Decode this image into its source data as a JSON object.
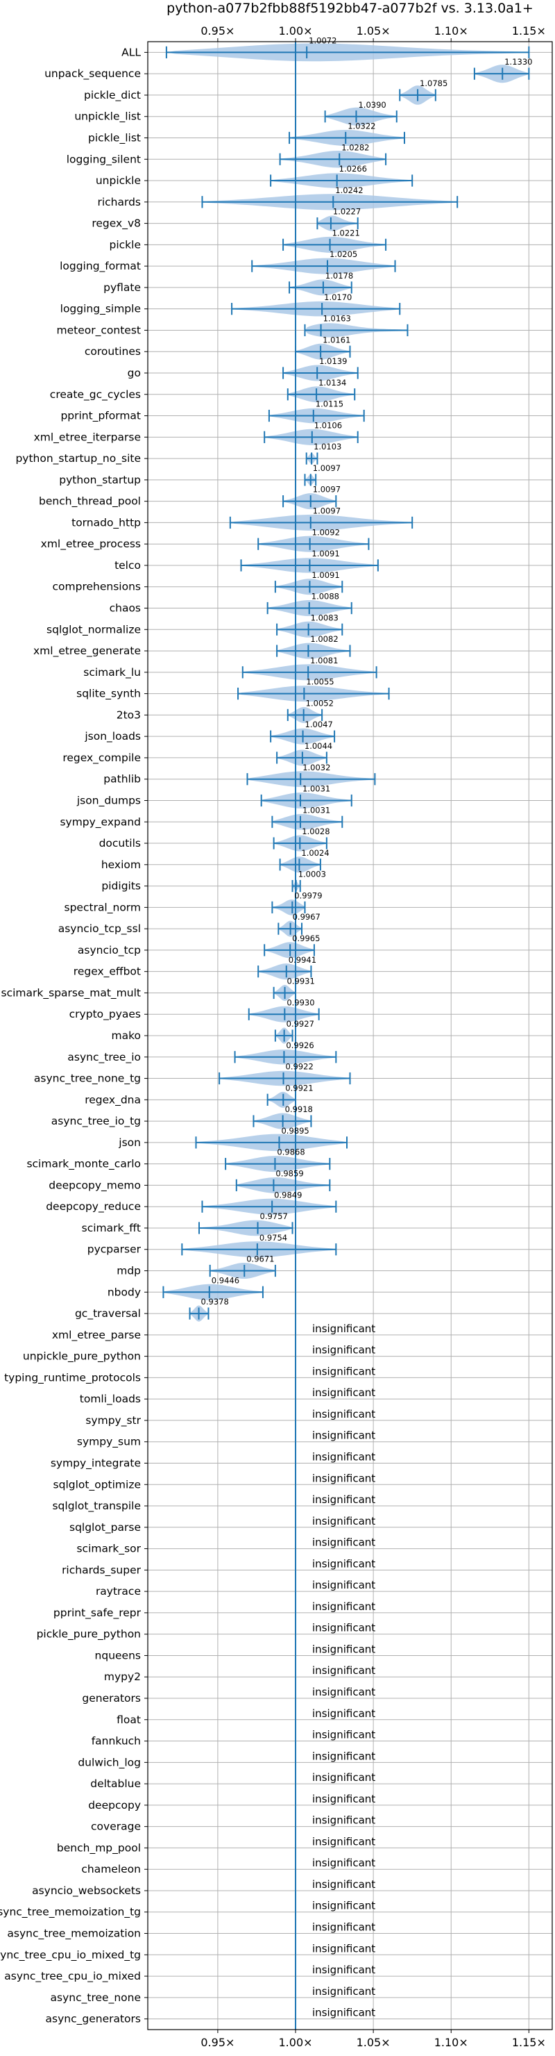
{
  "chart_data": {
    "type": "violin",
    "title": "python-a077b2fbb88f5192bb47-a077b2f vs. 3.13.0a1+",
    "x_ticks": [
      {
        "value": 0.95,
        "label": "0.95×"
      },
      {
        "value": 1.0,
        "label": "1.00×"
      },
      {
        "value": 1.05,
        "label": "1.05×"
      },
      {
        "value": 1.1,
        "label": "1.10×"
      },
      {
        "value": 1.15,
        "label": "1.15×"
      }
    ],
    "xlim": [
      0.905,
      1.165
    ],
    "reference_line": 1.0,
    "grid": true,
    "insignificant_text": "insignificant",
    "benchmarks": [
      {
        "name": "ALL",
        "value": 1.0072,
        "min": 0.917,
        "max": 1.15,
        "width": 0.85
      },
      {
        "name": "unpack_sequence",
        "value": 1.133,
        "min": 1.115,
        "max": 1.15,
        "width": 0.85
      },
      {
        "name": "pickle_dict",
        "value": 1.0785,
        "min": 1.067,
        "max": 1.09,
        "width": 0.9
      },
      {
        "name": "unpickle_list",
        "value": 1.039,
        "min": 1.019,
        "max": 1.065,
        "width": 0.85
      },
      {
        "name": "pickle_list",
        "value": 1.0322,
        "min": 0.996,
        "max": 1.07,
        "width": 0.75
      },
      {
        "name": "logging_silent",
        "value": 1.0282,
        "min": 0.99,
        "max": 1.058,
        "width": 0.8
      },
      {
        "name": "unpickle",
        "value": 1.0266,
        "min": 0.984,
        "max": 1.075,
        "width": 0.7
      },
      {
        "name": "richards",
        "value": 1.0242,
        "min": 0.94,
        "max": 1.104,
        "width": 0.75
      },
      {
        "name": "regex_v8",
        "value": 1.0227,
        "min": 1.014,
        "max": 1.04,
        "width": 0.75
      },
      {
        "name": "pickle",
        "value": 1.0221,
        "min": 0.992,
        "max": 1.058,
        "width": 0.75
      },
      {
        "name": "logging_format",
        "value": 1.0205,
        "min": 0.972,
        "max": 1.064,
        "width": 0.75
      },
      {
        "name": "pyflate",
        "value": 1.0178,
        "min": 0.996,
        "max": 1.036,
        "width": 0.75
      },
      {
        "name": "logging_simple",
        "value": 1.017,
        "min": 0.959,
        "max": 1.067,
        "width": 0.7
      },
      {
        "name": "meteor_contest",
        "value": 1.0163,
        "min": 1.006,
        "max": 1.072,
        "width": 0.8
      },
      {
        "name": "coroutines",
        "value": 1.0161,
        "min": 1.0,
        "max": 1.035,
        "width": 0.75
      },
      {
        "name": "go",
        "value": 1.0139,
        "min": 0.992,
        "max": 1.04,
        "width": 0.75
      },
      {
        "name": "create_gc_cycles",
        "value": 1.0134,
        "min": 0.995,
        "max": 1.038,
        "width": 0.75
      },
      {
        "name": "pprint_pformat",
        "value": 1.0115,
        "min": 0.983,
        "max": 1.044,
        "width": 0.7
      },
      {
        "name": "xml_etree_iterparse",
        "value": 1.0106,
        "min": 0.98,
        "max": 1.04,
        "width": 0.75
      },
      {
        "name": "python_startup_no_site",
        "value": 1.0103,
        "min": 1.007,
        "max": 1.014,
        "width": 0.5
      },
      {
        "name": "python_startup",
        "value": 1.0097,
        "min": 1.006,
        "max": 1.013,
        "width": 0.5
      },
      {
        "name": "bench_thread_pool",
        "value": 1.0097,
        "min": 0.992,
        "max": 1.026,
        "width": 0.75
      },
      {
        "name": "tornado_http",
        "value": 1.0097,
        "min": 0.958,
        "max": 1.075,
        "width": 0.75
      },
      {
        "name": "xml_etree_process",
        "value": 1.0092,
        "min": 0.976,
        "max": 1.047,
        "width": 0.75
      },
      {
        "name": "telco",
        "value": 1.0091,
        "min": 0.965,
        "max": 1.053,
        "width": 0.7
      },
      {
        "name": "comprehensions",
        "value": 1.0091,
        "min": 0.987,
        "max": 1.03,
        "width": 0.75
      },
      {
        "name": "chaos",
        "value": 1.0088,
        "min": 0.982,
        "max": 1.036,
        "width": 0.75
      },
      {
        "name": "sqlglot_normalize",
        "value": 1.0083,
        "min": 0.988,
        "max": 1.03,
        "width": 0.75
      },
      {
        "name": "xml_etree_generate",
        "value": 1.0082,
        "min": 0.988,
        "max": 1.035,
        "width": 0.75
      },
      {
        "name": "scimark_lu",
        "value": 1.0081,
        "min": 0.966,
        "max": 1.052,
        "width": 0.75
      },
      {
        "name": "sqlite_synth",
        "value": 1.0055,
        "min": 0.963,
        "max": 1.06,
        "width": 0.75
      },
      {
        "name": "2to3",
        "value": 1.0052,
        "min": 0.995,
        "max": 1.017,
        "width": 0.75
      },
      {
        "name": "json_loads",
        "value": 1.0047,
        "min": 0.984,
        "max": 1.025,
        "width": 0.75
      },
      {
        "name": "regex_compile",
        "value": 1.0044,
        "min": 0.988,
        "max": 1.02,
        "width": 0.75
      },
      {
        "name": "pathlib",
        "value": 1.0032,
        "min": 0.969,
        "max": 1.051,
        "width": 0.75
      },
      {
        "name": "json_dumps",
        "value": 1.0031,
        "min": 0.978,
        "max": 1.036,
        "width": 0.75
      },
      {
        "name": "sympy_expand",
        "value": 1.0031,
        "min": 0.985,
        "max": 1.03,
        "width": 0.75
      },
      {
        "name": "docutils",
        "value": 1.0028,
        "min": 0.986,
        "max": 1.02,
        "width": 0.75
      },
      {
        "name": "hexiom",
        "value": 1.0024,
        "min": 0.99,
        "max": 1.016,
        "width": 0.75
      },
      {
        "name": "pidigits",
        "value": 1.0003,
        "min": 0.998,
        "max": 1.003,
        "width": 0.45
      },
      {
        "name": "spectral_norm",
        "value": 0.9979,
        "min": 0.985,
        "max": 1.006,
        "width": 0.75
      },
      {
        "name": "asyncio_tcp_ssl",
        "value": 0.9967,
        "min": 0.989,
        "max": 1.004,
        "width": 0.75
      },
      {
        "name": "asyncio_tcp",
        "value": 0.9965,
        "min": 0.98,
        "max": 1.012,
        "width": 0.75
      },
      {
        "name": "regex_effbot",
        "value": 0.9941,
        "min": 0.976,
        "max": 1.01,
        "width": 0.75
      },
      {
        "name": "scimark_sparse_mat_mult",
        "value": 0.9931,
        "min": 0.986,
        "max": 1.0,
        "width": 0.75
      },
      {
        "name": "crypto_pyaes",
        "value": 0.993,
        "min": 0.97,
        "max": 1.015,
        "width": 0.75
      },
      {
        "name": "mako",
        "value": 0.9927,
        "min": 0.987,
        "max": 0.998,
        "width": 0.75
      },
      {
        "name": "async_tree_io",
        "value": 0.9926,
        "min": 0.961,
        "max": 1.026,
        "width": 0.7
      },
      {
        "name": "async_tree_none_tg",
        "value": 0.9922,
        "min": 0.951,
        "max": 1.035,
        "width": 0.7
      },
      {
        "name": "regex_dna",
        "value": 0.9921,
        "min": 0.982,
        "max": 1.0,
        "width": 0.75
      },
      {
        "name": "async_tree_io_tg",
        "value": 0.9918,
        "min": 0.973,
        "max": 1.01,
        "width": 0.75
      },
      {
        "name": "json",
        "value": 0.9895,
        "min": 0.936,
        "max": 1.033,
        "width": 0.8
      },
      {
        "name": "scimark_monte_carlo",
        "value": 0.9868,
        "min": 0.955,
        "max": 1.022,
        "width": 0.75
      },
      {
        "name": "deepcopy_memo",
        "value": 0.9859,
        "min": 0.962,
        "max": 1.022,
        "width": 0.75
      },
      {
        "name": "deepcopy_reduce",
        "value": 0.9849,
        "min": 0.94,
        "max": 1.026,
        "width": 0.75
      },
      {
        "name": "scimark_fft",
        "value": 0.9757,
        "min": 0.938,
        "max": 0.998,
        "width": 0.75
      },
      {
        "name": "pycparser",
        "value": 0.9754,
        "min": 0.927,
        "max": 1.026,
        "width": 0.75
      },
      {
        "name": "mdp",
        "value": 0.9671,
        "min": 0.945,
        "max": 0.987,
        "width": 0.75
      },
      {
        "name": "nbody",
        "value": 0.9446,
        "min": 0.915,
        "max": 0.979,
        "width": 0.75
      },
      {
        "name": "gc_traversal",
        "value": 0.9378,
        "min": 0.932,
        "max": 0.944,
        "width": 0.75
      },
      {
        "name": "xml_etree_parse",
        "insignificant": true
      },
      {
        "name": "unpickle_pure_python",
        "insignificant": true
      },
      {
        "name": "typing_runtime_protocols",
        "insignificant": true
      },
      {
        "name": "tomli_loads",
        "insignificant": true
      },
      {
        "name": "sympy_str",
        "insignificant": true
      },
      {
        "name": "sympy_sum",
        "insignificant": true
      },
      {
        "name": "sympy_integrate",
        "insignificant": true
      },
      {
        "name": "sqlglot_optimize",
        "insignificant": true
      },
      {
        "name": "sqlglot_transpile",
        "insignificant": true
      },
      {
        "name": "sqlglot_parse",
        "insignificant": true
      },
      {
        "name": "scimark_sor",
        "insignificant": true
      },
      {
        "name": "richards_super",
        "insignificant": true
      },
      {
        "name": "raytrace",
        "insignificant": true
      },
      {
        "name": "pprint_safe_repr",
        "insignificant": true
      },
      {
        "name": "pickle_pure_python",
        "insignificant": true
      },
      {
        "name": "nqueens",
        "insignificant": true
      },
      {
        "name": "mypy2",
        "insignificant": true
      },
      {
        "name": "generators",
        "insignificant": true
      },
      {
        "name": "float",
        "insignificant": true
      },
      {
        "name": "fannkuch",
        "insignificant": true
      },
      {
        "name": "dulwich_log",
        "insignificant": true
      },
      {
        "name": "deltablue",
        "insignificant": true
      },
      {
        "name": "deepcopy",
        "insignificant": true
      },
      {
        "name": "coverage",
        "insignificant": true
      },
      {
        "name": "bench_mp_pool",
        "insignificant": true
      },
      {
        "name": "chameleon",
        "insignificant": true
      },
      {
        "name": "asyncio_websockets",
        "insignificant": true
      },
      {
        "name": "async_tree_memoization_tg",
        "insignificant": true
      },
      {
        "name": "async_tree_memoization",
        "insignificant": true
      },
      {
        "name": "async_tree_cpu_io_mixed_tg",
        "insignificant": true
      },
      {
        "name": "async_tree_cpu_io_mixed",
        "insignificant": true
      },
      {
        "name": "async_tree_none",
        "insignificant": true
      },
      {
        "name": "async_generators",
        "insignificant": true
      }
    ],
    "colors": {
      "violin_fill": "#aac8e6",
      "line": "#1f77b4",
      "grid": "#b0b0b0",
      "axes": "#000000"
    }
  }
}
